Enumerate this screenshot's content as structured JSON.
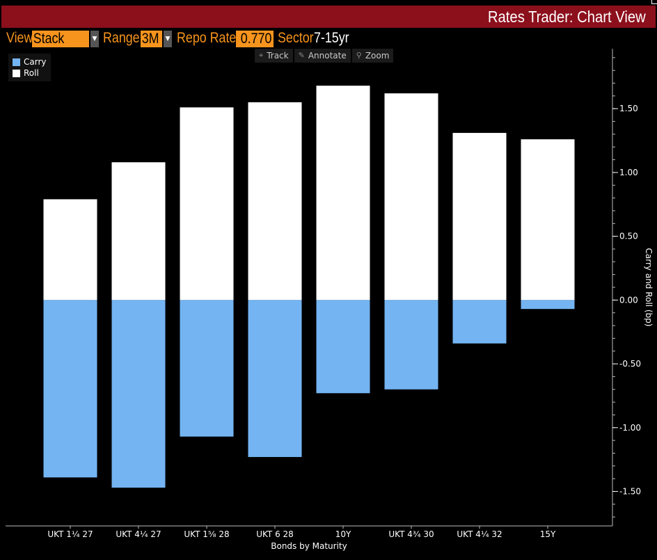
{
  "header": {
    "title": "Rates Trader: Chart View"
  },
  "toolbar": {
    "view_label": "View",
    "view_value": "Stack",
    "range_label": "Range",
    "range_value": "3M",
    "repo_label": "Repo Rate",
    "repo_value": "0.770",
    "sector_label": "Sector",
    "sector_value": "7-15yr"
  },
  "chart_tools": [
    {
      "label": "Track",
      "icon": "crosshair-icon"
    },
    {
      "label": "Annotate",
      "icon": "pencil-icon"
    },
    {
      "label": "Zoom",
      "icon": "magnifier-icon"
    }
  ],
  "colors": {
    "carry": "#74b4f2",
    "roll": "#ffffff",
    "title_bar": "#8c0f1c",
    "accent": "#f7941d"
  },
  "chart_data": {
    "type": "bar",
    "stacked": true,
    "xlabel": "Bonds by Maturity",
    "ylabel": "Carry and Roll (bp)",
    "categories": [
      "UKT 1¹⁄₄ 27",
      "UKT 4¹⁄₄ 27",
      "UKT 1⁵⁄₈ 28",
      "UKT 6 28",
      "10Y",
      "UKT 4³⁄₄ 30",
      "UKT 4¹⁄₄ 32",
      "15Y"
    ],
    "series": [
      {
        "name": "Carry",
        "values": [
          -1.39,
          -1.47,
          -1.07,
          -1.23,
          -0.73,
          -0.7,
          -0.34,
          -0.07
        ]
      },
      {
        "name": "Roll",
        "values": [
          0.79,
          1.08,
          1.51,
          1.55,
          1.68,
          1.62,
          1.31,
          1.26
        ]
      }
    ],
    "ylim": [
      -1.77,
      1.97
    ],
    "yticks": [
      "1.50",
      "1.00",
      "0.50",
      "0.00",
      "-0.50",
      "-1.00",
      "-1.50"
    ],
    "ytick_values": [
      1.5,
      1.0,
      0.5,
      0.0,
      -0.5,
      -1.0,
      -1.5
    ],
    "minor_step": 0.1,
    "legend": "top-left",
    "grid": false
  }
}
